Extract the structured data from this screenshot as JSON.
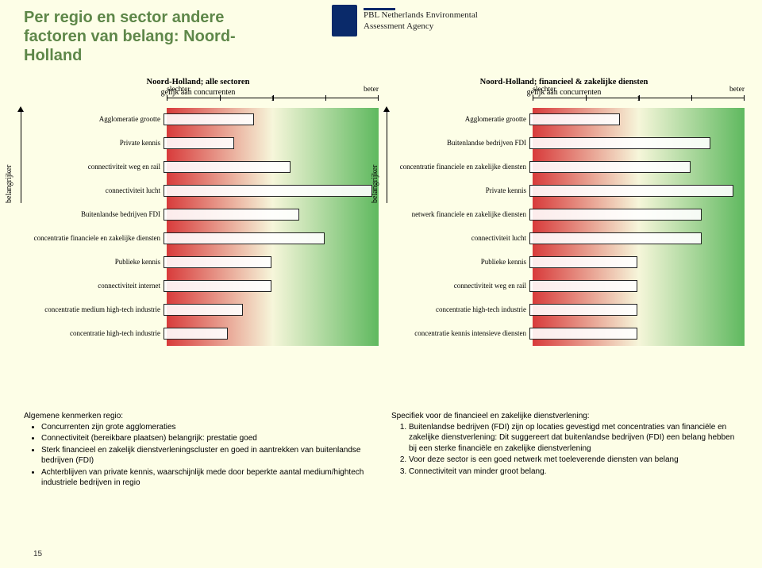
{
  "page_number": "15",
  "title_lines": [
    "Per regio en sector andere",
    "factoren van belang: Noord-",
    "Holland"
  ],
  "logo": {
    "line1": "PBL Netherlands Environmental",
    "line2": "Assessment Agency"
  },
  "axis": {
    "low": "slechter",
    "mid": "1",
    "high": "beter",
    "sub": "gelijk aan concurrenten"
  },
  "ylabel": "belangrijker",
  "gradient": {
    "left": "#d83b3b",
    "mid": "#f6f6da",
    "right": "#5fb95f"
  },
  "bar_style": {
    "fill": "rgba(255,255,255,0.9)",
    "border": "#222222"
  },
  "chart_left": {
    "title": "Noord-Holland; alle sectoren",
    "rows": [
      {
        "label": "Agglomeratie grootte",
        "start": 0.0,
        "end": 0.42
      },
      {
        "label": "Private kennis",
        "start": 0.0,
        "end": 0.33
      },
      {
        "label": "connectiviteit weg en rail",
        "start": 0.0,
        "end": 0.59
      },
      {
        "label": "connectiviteit lucht",
        "start": 0.0,
        "end": 0.97
      },
      {
        "label": "Buitenlandse bedrijven FDI",
        "start": 0.0,
        "end": 0.63
      },
      {
        "label": "concentratie financiele en zakelijke diensten",
        "start": 0.0,
        "end": 0.75
      },
      {
        "label": "Publieke kennis",
        "start": 0.0,
        "end": 0.5
      },
      {
        "label": "connectiviteit internet",
        "start": 0.0,
        "end": 0.5
      },
      {
        "label": "concentratie medium high-tech industrie",
        "start": 0.0,
        "end": 0.37
      },
      {
        "label": "concentratie high-tech industrie",
        "start": 0.0,
        "end": 0.3
      }
    ]
  },
  "chart_right": {
    "title": "Noord-Holland; financieel & zakelijke diensten",
    "rows": [
      {
        "label": "Agglomeratie grootte",
        "start": 0.0,
        "end": 0.42
      },
      {
        "label": "Buitenlandse bedrijven FDI",
        "start": 0.0,
        "end": 0.84
      },
      {
        "label": "concentratie financiele en zakelijke diensten",
        "start": 0.0,
        "end": 0.75
      },
      {
        "label": "Private kennis",
        "start": 0.0,
        "end": 0.95
      },
      {
        "label": "netwerk financiele en zakelijke diensten",
        "start": 0.0,
        "end": 0.8
      },
      {
        "label": "connectiviteit lucht",
        "start": 0.0,
        "end": 0.8
      },
      {
        "label": "Publieke kennis",
        "start": 0.0,
        "end": 0.5
      },
      {
        "label": "connectiviteit weg en rail",
        "start": 0.0,
        "end": 0.5
      },
      {
        "label": "concentratie high-tech industrie",
        "start": 0.0,
        "end": 0.5
      },
      {
        "label": "concentratie kennis intensieve diensten",
        "start": 0.0,
        "end": 0.5
      }
    ]
  },
  "bottom_left": {
    "heading": "Algemene kenmerken regio:",
    "bullets": [
      "Concurrenten zijn grote agglomeraties",
      "Connectiviteit (bereikbare plaatsen) belangrijk: prestatie goed",
      "Sterk financieel en zakelijk dienstverleningscluster en goed in aantrekken van buitenlandse bedrijven (FDI)",
      "Achterblijven van private kennis, waarschijnlijk mede door beperkte aantal medium/hightech industriele bedrijven in regio"
    ]
  },
  "bottom_right": {
    "heading": "Specifiek voor de financieel en zakelijke dienstverlening:",
    "items": [
      "Buitenlandse bedrijven (FDI) zijn op locaties gevestigd met concentraties van financiële en zakelijke dienstverlening: Dit suggereert dat buitenlandse bedrijven (FDI) een belang hebben bij een sterke financiële en zakelijke dienstverlening",
      "Voor deze sector is een goed netwerk met toeleverende diensten van belang",
      "Connectiviteit van minder groot belang."
    ]
  }
}
